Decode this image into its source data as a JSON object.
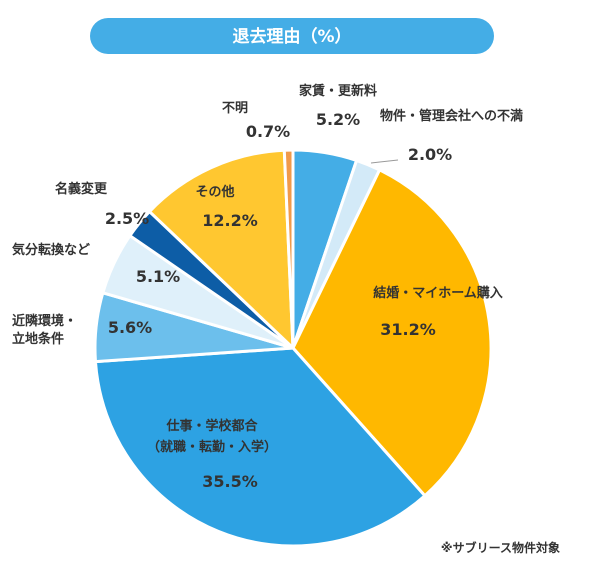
{
  "chart_data": {
    "type": "pie",
    "title": "退去理由（%）",
    "unit": "%",
    "legend": "none",
    "note": "※サブリース物件対象",
    "slices": [
      {
        "label": "家賃・更新料",
        "value": 5.2,
        "value_text": "5.2%",
        "color": "#44ade6"
      },
      {
        "label": "物件・管理会社への不満",
        "value": 2.0,
        "value_text": "2.0%",
        "color": "#d3eaf8"
      },
      {
        "label": "結婚・マイホーム購入",
        "value": 31.2,
        "value_text": "31.2%",
        "color": "#ffb800"
      },
      {
        "label": "仕事・学校都合",
        "label2": "（就職・転勤・入学）",
        "value": 35.5,
        "value_text": "35.5%",
        "color": "#2da2e3"
      },
      {
        "label": "近隣環境・",
        "label2": "立地条件",
        "value": 5.6,
        "value_text": "5.6%",
        "color": "#6cbfec"
      },
      {
        "label": "気分転換など",
        "value": 5.1,
        "value_text": "5.1%",
        "color": "#dff0fa"
      },
      {
        "label": "名義変更",
        "value": 2.5,
        "value_text": "2.5%",
        "color": "#0d5da6"
      },
      {
        "label": "その他",
        "value": 12.2,
        "value_text": "12.2%",
        "color": "#ffc730"
      },
      {
        "label": "不明",
        "value": 0.7,
        "value_text": "0.7%",
        "color": "#f09a4a"
      }
    ]
  }
}
